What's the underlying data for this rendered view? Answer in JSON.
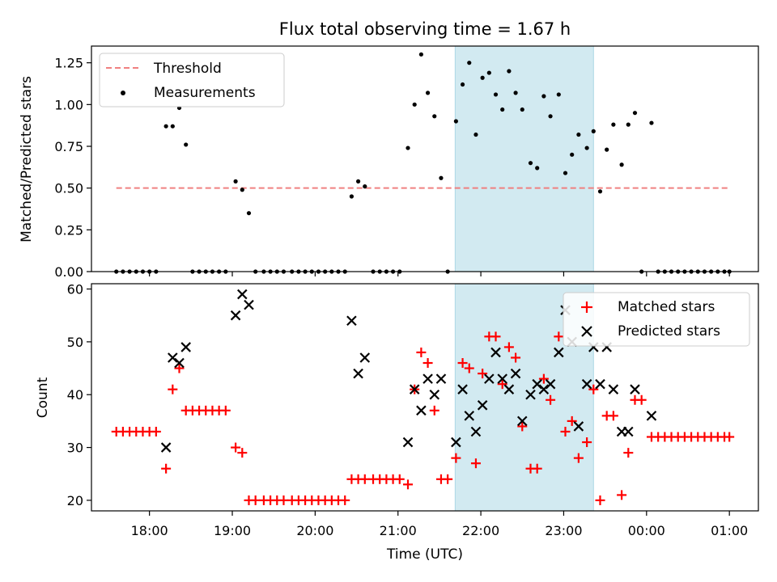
{
  "figure": {
    "title": "Flux total observing time = 1.67 h"
  },
  "chart_data": [
    {
      "type": "scatter",
      "ylabel": "Matched/Predicted stars",
      "ylim": [
        0,
        1.35
      ],
      "yticks": [
        "0.00",
        "0.25",
        "0.50",
        "0.75",
        "1.00",
        "1.25"
      ],
      "ytick_values": [
        0,
        0.25,
        0.5,
        0.75,
        1.0,
        1.25
      ],
      "x_range_hours": [
        17.3,
        25.35
      ],
      "shaded_region_hours": [
        21.69,
        23.36
      ],
      "shaded_color": "#add8e6",
      "legend_placement": "upper-left",
      "threshold": {
        "name": "Threshold",
        "value": 0.5,
        "x_hours": [
          17.6,
          25.0
        ],
        "color": "#f08080"
      },
      "series": [
        {
          "name": "Measurements",
          "color": "#000000",
          "points": [
            [
              17.6,
              0
            ],
            [
              17.68,
              0
            ],
            [
              17.76,
              0
            ],
            [
              17.84,
              0
            ],
            [
              17.92,
              0
            ],
            [
              18.0,
              0
            ],
            [
              18.08,
              0
            ],
            [
              18.2,
              0.87
            ],
            [
              18.28,
              0.87
            ],
            [
              18.36,
              0.98
            ],
            [
              18.44,
              0.76
            ],
            [
              18.52,
              0
            ],
            [
              18.6,
              0
            ],
            [
              18.68,
              0
            ],
            [
              18.76,
              0
            ],
            [
              18.84,
              0
            ],
            [
              18.92,
              0
            ],
            [
              19.04,
              0.54
            ],
            [
              19.12,
              0.49
            ],
            [
              19.2,
              0.35
            ],
            [
              19.28,
              0
            ],
            [
              19.38,
              0
            ],
            [
              19.46,
              0
            ],
            [
              19.54,
              0
            ],
            [
              19.62,
              0
            ],
            [
              19.72,
              0
            ],
            [
              19.8,
              0
            ],
            [
              19.88,
              0
            ],
            [
              19.96,
              0
            ],
            [
              20.04,
              0
            ],
            [
              20.12,
              0
            ],
            [
              20.2,
              0
            ],
            [
              20.28,
              0
            ],
            [
              20.36,
              0
            ],
            [
              20.44,
              0.45
            ],
            [
              20.52,
              0.54
            ],
            [
              20.6,
              0.51
            ],
            [
              20.7,
              0
            ],
            [
              20.78,
              0
            ],
            [
              20.86,
              0
            ],
            [
              20.94,
              0
            ],
            [
              21.02,
              0
            ],
            [
              21.12,
              0.74
            ],
            [
              21.2,
              1.0
            ],
            [
              21.28,
              1.3
            ],
            [
              21.36,
              1.07
            ],
            [
              21.44,
              0.93
            ],
            [
              21.52,
              0.56
            ],
            [
              21.6,
              0
            ],
            [
              21.7,
              0.9
            ],
            [
              21.78,
              1.12
            ],
            [
              21.86,
              1.25
            ],
            [
              21.94,
              0.82
            ],
            [
              22.02,
              1.16
            ],
            [
              22.1,
              1.19
            ],
            [
              22.18,
              1.06
            ],
            [
              22.26,
              0.97
            ],
            [
              22.34,
              1.2
            ],
            [
              22.42,
              1.07
            ],
            [
              22.5,
              0.97
            ],
            [
              22.6,
              0.65
            ],
            [
              22.68,
              0.62
            ],
            [
              22.76,
              1.05
            ],
            [
              22.84,
              0.93
            ],
            [
              22.94,
              1.06
            ],
            [
              23.02,
              0.59
            ],
            [
              23.1,
              0.7
            ],
            [
              23.18,
              0.82
            ],
            [
              23.28,
              0.74
            ],
            [
              23.36,
              0.84
            ],
            [
              23.44,
              0.48
            ],
            [
              23.52,
              0.73
            ],
            [
              23.6,
              0.88
            ],
            [
              23.7,
              0.64
            ],
            [
              23.78,
              0.88
            ],
            [
              23.86,
              0.95
            ],
            [
              23.94,
              0
            ],
            [
              24.06,
              0.89
            ],
            [
              24.14,
              0
            ],
            [
              24.22,
              0
            ],
            [
              24.3,
              0
            ],
            [
              24.38,
              0
            ],
            [
              24.46,
              0
            ],
            [
              24.54,
              0
            ],
            [
              24.62,
              0
            ],
            [
              24.7,
              0
            ],
            [
              24.78,
              0
            ],
            [
              24.86,
              0
            ],
            [
              24.94,
              0
            ],
            [
              25.0,
              0
            ]
          ]
        }
      ]
    },
    {
      "type": "scatter",
      "ylabel": "Count",
      "xlabel": "Time (UTC)",
      "ylim": [
        18,
        61
      ],
      "yticks": [
        "20",
        "30",
        "40",
        "50",
        "60"
      ],
      "ytick_values": [
        20,
        30,
        40,
        50,
        60
      ],
      "x_range_hours": [
        17.3,
        25.35
      ],
      "xticks": [
        "18:00",
        "19:00",
        "20:00",
        "21:00",
        "22:00",
        "23:00",
        "00:00",
        "01:00"
      ],
      "xtick_hours": [
        18,
        19,
        20,
        21,
        22,
        23,
        24,
        25
      ],
      "shaded_region_hours": [
        21.69,
        23.36
      ],
      "shaded_color": "#add8e6",
      "legend_placement": "upper-right",
      "series": [
        {
          "name": "Matched stars",
          "marker": "plus",
          "color": "#ff0000",
          "points": [
            [
              17.6,
              33
            ],
            [
              17.68,
              33
            ],
            [
              17.76,
              33
            ],
            [
              17.84,
              33
            ],
            [
              17.92,
              33
            ],
            [
              18.0,
              33
            ],
            [
              18.08,
              33
            ],
            [
              18.2,
              26
            ],
            [
              18.28,
              41
            ],
            [
              18.36,
              45
            ],
            [
              18.44,
              37
            ],
            [
              18.52,
              37
            ],
            [
              18.6,
              37
            ],
            [
              18.68,
              37
            ],
            [
              18.76,
              37
            ],
            [
              18.84,
              37
            ],
            [
              18.92,
              37
            ],
            [
              19.04,
              30
            ],
            [
              19.12,
              29
            ],
            [
              19.2,
              20
            ],
            [
              19.28,
              20
            ],
            [
              19.38,
              20
            ],
            [
              19.46,
              20
            ],
            [
              19.54,
              20
            ],
            [
              19.62,
              20
            ],
            [
              19.72,
              20
            ],
            [
              19.8,
              20
            ],
            [
              19.88,
              20
            ],
            [
              19.96,
              20
            ],
            [
              20.04,
              20
            ],
            [
              20.12,
              20
            ],
            [
              20.2,
              20
            ],
            [
              20.28,
              20
            ],
            [
              20.36,
              20
            ],
            [
              20.44,
              24
            ],
            [
              20.52,
              24
            ],
            [
              20.6,
              24
            ],
            [
              20.7,
              24
            ],
            [
              20.78,
              24
            ],
            [
              20.86,
              24
            ],
            [
              20.94,
              24
            ],
            [
              21.02,
              24
            ],
            [
              21.12,
              23
            ],
            [
              21.2,
              41
            ],
            [
              21.28,
              48
            ],
            [
              21.36,
              46
            ],
            [
              21.44,
              37
            ],
            [
              21.52,
              24
            ],
            [
              21.6,
              24
            ],
            [
              21.7,
              28
            ],
            [
              21.78,
              46
            ],
            [
              21.86,
              45
            ],
            [
              21.94,
              27
            ],
            [
              22.02,
              44
            ],
            [
              22.1,
              51
            ],
            [
              22.18,
              51
            ],
            [
              22.26,
              42
            ],
            [
              22.34,
              49
            ],
            [
              22.42,
              47
            ],
            [
              22.5,
              34
            ],
            [
              22.6,
              26
            ],
            [
              22.68,
              26
            ],
            [
              22.76,
              43
            ],
            [
              22.84,
              39
            ],
            [
              22.94,
              51
            ],
            [
              23.02,
              33
            ],
            [
              23.1,
              35
            ],
            [
              23.18,
              28
            ],
            [
              23.28,
              31
            ],
            [
              23.36,
              41
            ],
            [
              23.44,
              20
            ],
            [
              23.52,
              36
            ],
            [
              23.6,
              36
            ],
            [
              23.7,
              21
            ],
            [
              23.78,
              29
            ],
            [
              23.86,
              39
            ],
            [
              23.94,
              39
            ],
            [
              24.06,
              32
            ],
            [
              24.14,
              32
            ],
            [
              24.22,
              32
            ],
            [
              24.3,
              32
            ],
            [
              24.38,
              32
            ],
            [
              24.46,
              32
            ],
            [
              24.54,
              32
            ],
            [
              24.62,
              32
            ],
            [
              24.7,
              32
            ],
            [
              24.78,
              32
            ],
            [
              24.86,
              32
            ],
            [
              24.94,
              32
            ],
            [
              25.0,
              32
            ]
          ]
        },
        {
          "name": "Predicted stars",
          "marker": "x",
          "color": "#000000",
          "points": [
            [
              18.2,
              30
            ],
            [
              18.28,
              47
            ],
            [
              18.36,
              46
            ],
            [
              18.44,
              49
            ],
            [
              19.04,
              55
            ],
            [
              19.12,
              59
            ],
            [
              19.2,
              57
            ],
            [
              20.44,
              54
            ],
            [
              20.52,
              44
            ],
            [
              20.6,
              47
            ],
            [
              21.12,
              31
            ],
            [
              21.2,
              41
            ],
            [
              21.28,
              37
            ],
            [
              21.36,
              43
            ],
            [
              21.44,
              40
            ],
            [
              21.52,
              43
            ],
            [
              21.7,
              31
            ],
            [
              21.78,
              41
            ],
            [
              21.86,
              36
            ],
            [
              21.94,
              33
            ],
            [
              22.02,
              38
            ],
            [
              22.1,
              43
            ],
            [
              22.18,
              48
            ],
            [
              22.26,
              43
            ],
            [
              22.34,
              41
            ],
            [
              22.42,
              44
            ],
            [
              22.5,
              35
            ],
            [
              22.6,
              40
            ],
            [
              22.68,
              42
            ],
            [
              22.76,
              41
            ],
            [
              22.84,
              42
            ],
            [
              22.94,
              48
            ],
            [
              23.02,
              56
            ],
            [
              23.1,
              50
            ],
            [
              23.18,
              34
            ],
            [
              23.28,
              42
            ],
            [
              23.36,
              49
            ],
            [
              23.44,
              42
            ],
            [
              23.52,
              49
            ],
            [
              23.6,
              41
            ],
            [
              23.7,
              33
            ],
            [
              23.78,
              33
            ],
            [
              23.86,
              41
            ],
            [
              24.06,
              36
            ]
          ]
        }
      ]
    }
  ]
}
